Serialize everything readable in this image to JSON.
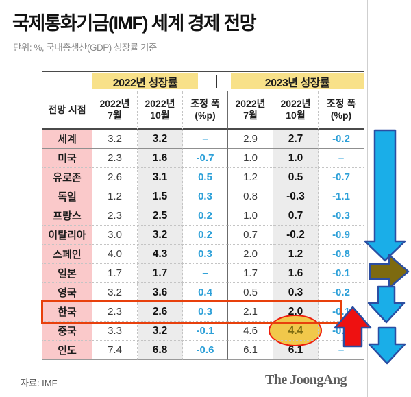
{
  "title": "국제통화기금(IMF) 세계 경제 전망",
  "subtitle": "단위: %, 국내총생산(GDP) 성장률 기준",
  "table": {
    "corner_label": "전망 시점",
    "group_headers": [
      "2022년 성장률",
      "2023년 성장률"
    ],
    "sub_headers": [
      "2022년\n7월",
      "2022년\n10월",
      "조정 폭\n(%p)",
      "2022년\n7월",
      "2022년\n10월",
      "조정 폭\n(%p)"
    ],
    "rows": [
      {
        "label": "세계",
        "values": [
          "3.2",
          "3.2",
          "–",
          "2.9",
          "2.7",
          "-0.2"
        ]
      },
      {
        "label": "미국",
        "values": [
          "2.3",
          "1.6",
          "-0.7",
          "1.0",
          "1.0",
          "–"
        ]
      },
      {
        "label": "유로존",
        "values": [
          "2.6",
          "3.1",
          "0.5",
          "1.2",
          "0.5",
          "-0.7"
        ]
      },
      {
        "label": "독일",
        "values": [
          "1.2",
          "1.5",
          "0.3",
          "0.8",
          "-0.3",
          "-1.1"
        ]
      },
      {
        "label": "프랑스",
        "values": [
          "2.3",
          "2.5",
          "0.2",
          "1.0",
          "0.7",
          "-0.3"
        ]
      },
      {
        "label": "이탈리아",
        "values": [
          "3.0",
          "3.2",
          "0.2",
          "0.7",
          "-0.2",
          "-0.9"
        ]
      },
      {
        "label": "스페인",
        "values": [
          "4.0",
          "4.3",
          "0.3",
          "2.0",
          "1.2",
          "-0.8"
        ]
      },
      {
        "label": "일본",
        "values": [
          "1.7",
          "1.7",
          "–",
          "1.7",
          "1.6",
          "-0.1"
        ]
      },
      {
        "label": "영국",
        "values": [
          "3.2",
          "3.6",
          "0.4",
          "0.5",
          "0.3",
          "-0.2"
        ]
      },
      {
        "label": "한국",
        "values": [
          "2.3",
          "2.6",
          "0.3",
          "2.1",
          "2.0",
          "-0.1"
        ],
        "highlighted": true
      },
      {
        "label": "중국",
        "values": [
          "3.3",
          "3.2",
          "-0.1",
          "4.6",
          "4.4",
          "-0.2"
        ],
        "circled_index": 4
      },
      {
        "label": "인도",
        "values": [
          "7.4",
          "6.8",
          "-0.6",
          "6.1",
          "6.1",
          "–"
        ]
      }
    ]
  },
  "footer": {
    "source": "자료: IMF",
    "logo": "The JoongAng"
  },
  "annotations": {
    "highlighted_row": "한국",
    "circled_value": "4.4",
    "arrows": [
      "long-down-arrow-blue",
      "right-arrow-olive",
      "down-arrow-blue",
      "up-arrow-red",
      "down-arrow-blue"
    ]
  },
  "colors": {
    "header_yellow": "#f8e189",
    "row_label_pink": "#fac9ca",
    "column_gray": "#ececec",
    "adjust_blue": "#2da0d8",
    "highlight_box_red": "#e8400c",
    "circle_border_red": "#ee1c0c",
    "circle_fill_yellow": "#f1c84b",
    "circled_text_olive": "#7c6a10",
    "arrow_blue": "#1aaee8",
    "arrow_outline_navy": "#2b4ea2",
    "arrow_olive": "#7d6a10",
    "arrow_red": "#ee1111"
  },
  "chart_data": {
    "type": "table",
    "title": "국제통화기금(IMF) 세계 경제 전망",
    "subtitle": "단위: %, 국내총생산(GDP) 성장률 기준",
    "column_groups": [
      "2022년 성장률",
      "2023년 성장률"
    ],
    "columns": [
      "전망 시점",
      "2022년 7월",
      "2022년 10월",
      "조정 폭(%p)",
      "2022년 7월",
      "2022년 10월",
      "조정 폭(%p)"
    ],
    "rows": [
      [
        "세계",
        3.2,
        3.2,
        null,
        2.9,
        2.7,
        -0.2
      ],
      [
        "미국",
        2.3,
        1.6,
        -0.7,
        1.0,
        1.0,
        null
      ],
      [
        "유로존",
        2.6,
        3.1,
        0.5,
        1.2,
        0.5,
        -0.7
      ],
      [
        "독일",
        1.2,
        1.5,
        0.3,
        0.8,
        -0.3,
        -1.1
      ],
      [
        "프랑스",
        2.3,
        2.5,
        0.2,
        1.0,
        0.7,
        -0.3
      ],
      [
        "이탈리아",
        3.0,
        3.2,
        0.2,
        0.7,
        -0.2,
        -0.9
      ],
      [
        "스페인",
        4.0,
        4.3,
        0.3,
        2.0,
        1.2,
        -0.8
      ],
      [
        "일본",
        1.7,
        1.7,
        null,
        1.7,
        1.6,
        -0.1
      ],
      [
        "영국",
        3.2,
        3.6,
        0.4,
        0.5,
        0.3,
        -0.2
      ],
      [
        "한국",
        2.3,
        2.6,
        0.3,
        2.1,
        2.0,
        -0.1
      ],
      [
        "중국",
        3.3,
        3.2,
        -0.1,
        4.6,
        4.4,
        -0.2
      ],
      [
        "인도",
        7.4,
        6.8,
        -0.6,
        6.1,
        6.1,
        null
      ]
    ],
    "source": "자료: IMF"
  }
}
